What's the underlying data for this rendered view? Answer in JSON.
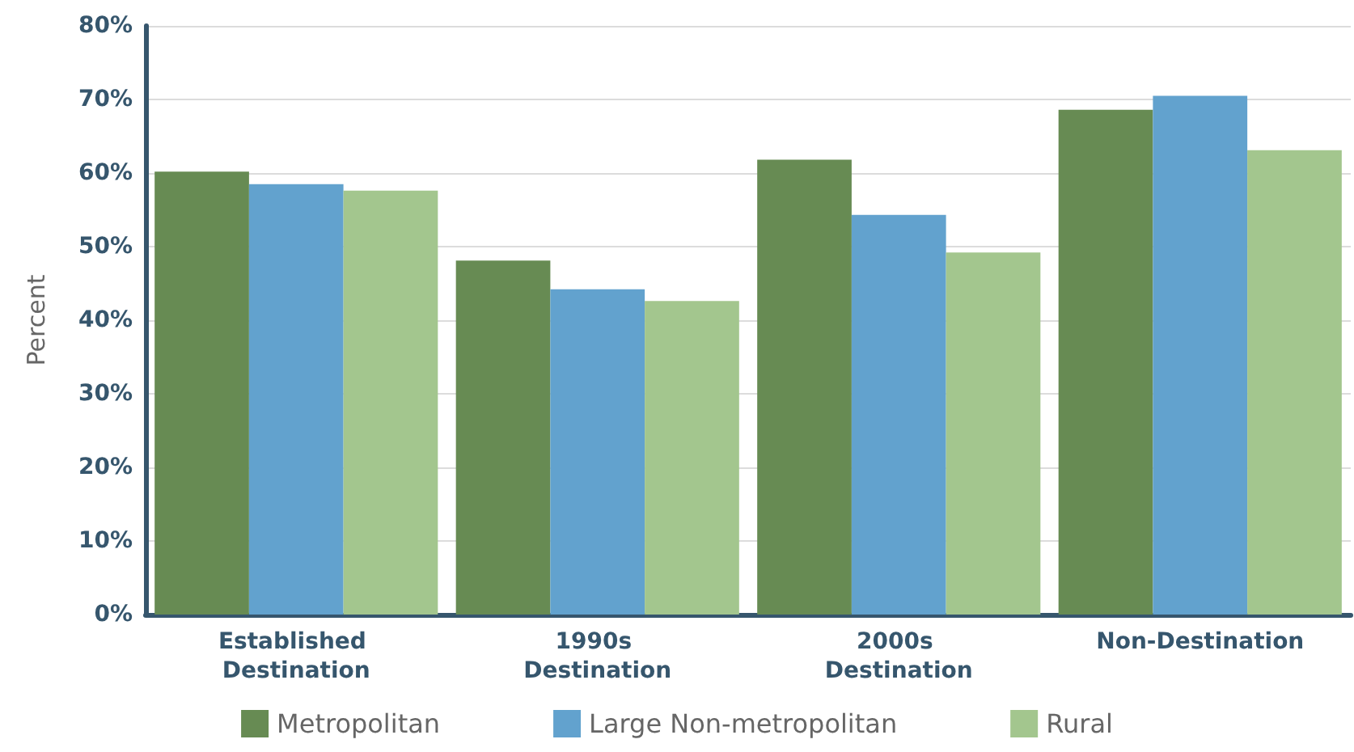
{
  "chart_data": {
    "type": "bar",
    "ylabel": "Percent",
    "categories": [
      "Established Destination",
      "1990s Destination",
      "2000s Destination",
      "Non-Destination"
    ],
    "series": [
      {
        "name": "Metropolitan",
        "color": "#678b53",
        "values": [
          60.2,
          48.1,
          61.8,
          68.6
        ]
      },
      {
        "name": "Large Non-metropolitan",
        "color": "#62a2ce",
        "values": [
          58.5,
          44.2,
          54.3,
          70.5
        ]
      },
      {
        "name": "Rural",
        "color": "#a3c68e",
        "values": [
          57.6,
          42.6,
          49.2,
          63.1
        ]
      }
    ],
    "ylim": [
      0,
      80
    ],
    "yticks": [
      {
        "value": 0,
        "label": "0%"
      },
      {
        "value": 10,
        "label": "10%"
      },
      {
        "value": 20,
        "label": "20%"
      },
      {
        "value": 30,
        "label": "30%"
      },
      {
        "value": 40,
        "label": "40%"
      },
      {
        "value": 50,
        "label": "50%"
      },
      {
        "value": 60,
        "label": "60%"
      },
      {
        "value": 70,
        "label": "70%"
      },
      {
        "value": 80,
        "label": "80%"
      }
    ],
    "grid": "y",
    "legend": "bottom"
  }
}
